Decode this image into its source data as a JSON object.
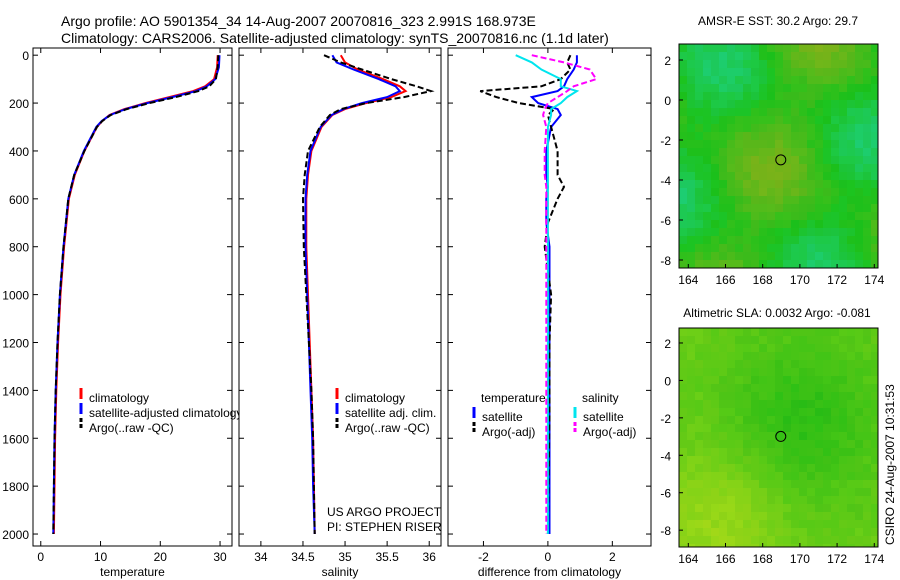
{
  "header": {
    "line1": "Argo profile: AO 5901354_34 14-Aug-2007 20070816_323 2.991S 168.973E",
    "line2": "Climatology: CARS2006. Satellite-adjusted climatology: synTS_20070816.nc (1.1d later)"
  },
  "footer_stamp": "CSIRO 24-Aug-2007 10:31:53",
  "project_note": [
    "US ARGO PROJECT",
    "PI: STEPHEN RISER"
  ],
  "colors": {
    "climatology": "#ff0000",
    "satellite": "#0000ff",
    "argo": "#000000",
    "sal_satellite": "#00e5ee",
    "sal_argo": "#ff00ff"
  },
  "chart_data": [
    {
      "type": "line",
      "xlabel": "temperature",
      "ylabel": "",
      "xlim": [
        -1.3,
        32
      ],
      "ylim": [
        2050,
        -30
      ],
      "xticks": [
        0,
        10,
        20,
        30
      ],
      "yticks": [
        0,
        200,
        400,
        600,
        800,
        1000,
        1200,
        1400,
        1600,
        1800,
        2000
      ],
      "legend": [
        "climatology",
        "satellite-adjusted climatology",
        "Argo(..raw -QC)"
      ],
      "depth": [
        0,
        50,
        100,
        130,
        150,
        175,
        200,
        225,
        250,
        275,
        300,
        400,
        500,
        600,
        800,
        1000,
        1200,
        1400,
        1600,
        1800,
        2000
      ],
      "series": [
        {
          "name": "climatology",
          "values": [
            29.6,
            29.5,
            29.0,
            27.5,
            25.5,
            21.5,
            17.5,
            14.0,
            11.5,
            10.3,
            9.4,
            7.3,
            5.7,
            4.7,
            3.9,
            3.3,
            2.9,
            2.6,
            2.4,
            2.3,
            2.2
          ]
        },
        {
          "name": "satellite-adjusted climatology",
          "values": [
            29.9,
            29.8,
            29.2,
            27.8,
            26.0,
            22.0,
            17.8,
            14.2,
            11.6,
            10.2,
            9.3,
            7.2,
            5.6,
            4.6,
            3.8,
            3.2,
            2.8,
            2.5,
            2.3,
            2.2,
            2.1
          ]
        },
        {
          "name": "Argo(..raw -QC)",
          "values": [
            29.7,
            29.6,
            29.3,
            28.2,
            26.4,
            22.6,
            18.2,
            14.4,
            11.7,
            10.3,
            9.4,
            7.3,
            5.6,
            4.6,
            3.8,
            3.2,
            2.8,
            2.5,
            2.3,
            2.2,
            2.1
          ]
        }
      ]
    },
    {
      "type": "line",
      "xlabel": "salinity",
      "xlim": [
        33.74,
        36.14
      ],
      "ylim": [
        2050,
        -30
      ],
      "xticks": [
        34,
        34.5,
        35,
        35.5,
        36
      ],
      "legend": [
        "climatology",
        "satellite adj. clim.",
        "Argo(..raw -QC)"
      ],
      "depth": [
        0,
        30,
        60,
        100,
        130,
        150,
        175,
        200,
        225,
        250,
        300,
        400,
        500,
        600,
        800,
        1000,
        1200,
        1400,
        1600,
        1800,
        2000
      ],
      "series": [
        {
          "name": "climatology",
          "values": [
            34.95,
            35.0,
            35.15,
            35.45,
            35.65,
            35.72,
            35.55,
            35.25,
            35.0,
            34.85,
            34.72,
            34.6,
            34.56,
            34.54,
            34.54,
            34.56,
            34.58,
            34.6,
            34.62,
            34.63,
            34.64
          ]
        },
        {
          "name": "satellite adj. clim.",
          "values": [
            34.85,
            34.9,
            35.1,
            35.4,
            35.6,
            35.65,
            35.5,
            35.2,
            34.98,
            34.84,
            34.71,
            34.59,
            34.55,
            34.53,
            34.53,
            34.55,
            34.57,
            34.59,
            34.61,
            34.62,
            34.64
          ]
        },
        {
          "name": "Argo(..raw -QC)",
          "values": [
            34.75,
            34.95,
            35.2,
            35.55,
            35.85,
            36.02,
            35.7,
            35.25,
            34.95,
            34.82,
            34.7,
            34.56,
            34.52,
            34.5,
            34.51,
            34.54,
            34.57,
            34.6,
            34.62,
            34.63,
            34.64
          ]
        }
      ]
    },
    {
      "type": "line",
      "xlabel": "difference from climatology",
      "xlim": [
        -3.1,
        3.2
      ],
      "ylim": [
        2050,
        -30
      ],
      "xticks": [
        -2,
        0,
        2
      ],
      "legend": [
        "temperature",
        "satellite",
        "Argo(-adj)",
        "salinity",
        "satellite",
        "Argo(-adj)"
      ],
      "depth": [
        0,
        30,
        60,
        100,
        130,
        150,
        175,
        200,
        225,
        250,
        300,
        400,
        500,
        550,
        600,
        700,
        800,
        1000,
        1200,
        1500,
        2000
      ],
      "series": [
        {
          "name": "temperature satellite",
          "values": [
            0.9,
            0.9,
            0.8,
            0.6,
            0.5,
            0.3,
            -0.5,
            -0.3,
            0.3,
            0.4,
            0.1,
            -0.05,
            -0.05,
            0.0,
            -0.05,
            -0.05,
            0.05,
            0.05,
            0.05,
            0.05,
            0.05
          ]
        },
        {
          "name": "temperature Argo(-adj)",
          "values": [
            0.7,
            0.6,
            0.7,
            0.4,
            -0.2,
            -2.1,
            -1.6,
            -0.9,
            0.2,
            0.0,
            0.1,
            0.3,
            0.3,
            0.5,
            0.3,
            0.0,
            -0.1,
            0.1,
            0.05,
            0.05,
            0.0
          ]
        },
        {
          "name": "salinity satellite",
          "values": [
            -1.0,
            -0.5,
            -0.2,
            0.4,
            0.4,
            0.9,
            0.6,
            0.4,
            0.1,
            0.1,
            0.0,
            0.0,
            0.0,
            0.0,
            0.0,
            0.0,
            0.0,
            0.0,
            0.0,
            0.0,
            0.0
          ]
        },
        {
          "name": "salinity Argo(-adj)",
          "values": [
            -0.5,
            0.5,
            1.3,
            1.5,
            0.8,
            0.6,
            0.3,
            0.0,
            -0.1,
            -0.15,
            -0.05,
            -0.1,
            -0.1,
            -0.05,
            -0.05,
            -0.05,
            -0.05,
            -0.05,
            -0.05,
            -0.05,
            -0.05
          ]
        }
      ]
    },
    {
      "type": "heatmap",
      "title": "AMSR-E SST: 30.2 Argo: 29.7",
      "xlim": [
        163.5,
        174.2
      ],
      "ylim": [
        -8.4,
        2.8
      ],
      "xticks": [
        164,
        166,
        168,
        170,
        172,
        174
      ],
      "yticks": [
        2,
        0,
        -2,
        -4,
        -6,
        -8
      ],
      "float_position": {
        "lon": 168.973,
        "lat": -2.991
      }
    },
    {
      "type": "heatmap",
      "title": "Altimetric SLA: 0.0032 Argo: -0.081",
      "xlim": [
        163.5,
        174.2
      ],
      "ylim": [
        -8.9,
        2.8
      ],
      "xticks": [
        164,
        166,
        168,
        170,
        172,
        174
      ],
      "yticks": [
        2,
        0,
        -2,
        -4,
        -6,
        -8
      ],
      "float_position": {
        "lon": 168.973,
        "lat": -2.991
      }
    }
  ]
}
